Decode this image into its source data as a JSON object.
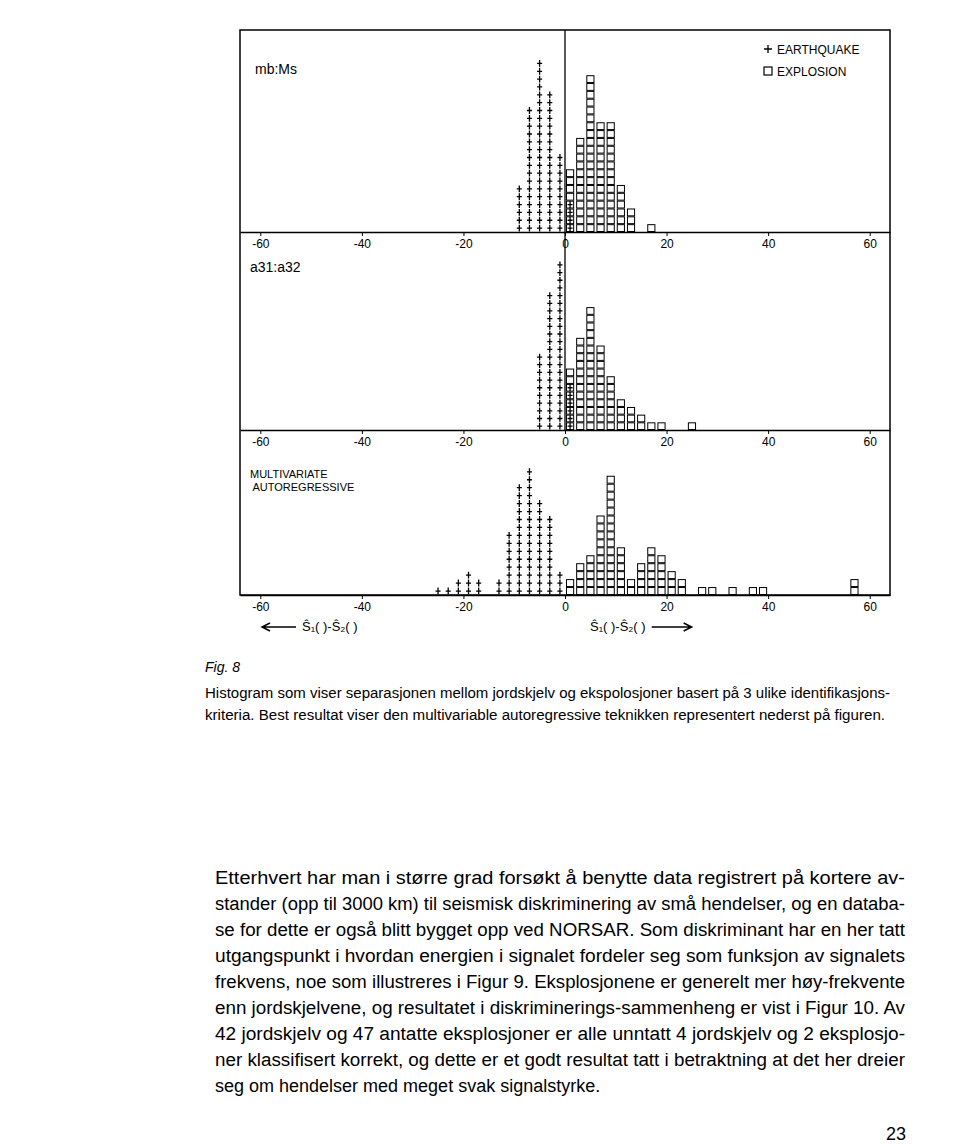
{
  "chart_data": [
    {
      "type": "histogram",
      "title": "mb:Ms",
      "bins": [
        -30,
        -28,
        -26,
        -24,
        -22,
        -20,
        -18,
        -16,
        -14,
        -12,
        -10,
        -8,
        -6,
        -4,
        -2,
        0,
        2,
        4,
        6,
        8,
        10,
        12,
        14,
        16,
        18,
        20,
        22,
        24,
        26,
        28,
        30,
        32,
        34,
        36,
        38,
        40,
        42,
        44,
        46,
        48,
        50,
        52,
        54,
        56,
        58,
        60
      ],
      "series": [
        {
          "name": "EARTHQUAKE",
          "marker": "plus",
          "color": "#000000",
          "values": [
            0,
            0,
            0,
            0,
            0,
            0,
            0,
            0,
            0,
            0,
            6,
            16,
            22,
            18,
            10,
            4,
            0,
            0,
            0,
            0,
            0,
            0,
            0,
            0,
            0,
            0,
            0,
            0,
            0,
            0,
            0,
            0,
            0,
            0,
            0,
            0,
            0,
            0,
            0,
            0,
            0,
            0,
            0,
            0,
            0
          ]
        },
        {
          "name": "EXPLOSION",
          "marker": "square",
          "color": "#000000",
          "values": [
            0,
            0,
            0,
            0,
            0,
            0,
            0,
            0,
            0,
            0,
            0,
            0,
            0,
            0,
            0,
            8,
            12,
            20,
            14,
            14,
            6,
            3,
            0,
            1,
            0,
            0,
            0,
            0,
            0,
            0,
            0,
            0,
            0,
            0,
            0,
            0,
            0,
            0,
            0,
            0,
            0,
            0,
            0,
            0,
            0
          ]
        }
      ],
      "xlim": [
        -64,
        64
      ],
      "xticks": [
        -60,
        -40,
        -20,
        0,
        20,
        40,
        60
      ],
      "ylim": [
        0,
        25
      ],
      "tick_labels": "x",
      "legend": "top-right"
    },
    {
      "type": "histogram",
      "title": "a31:a32",
      "bins": [
        -30,
        -28,
        -26,
        -24,
        -22,
        -20,
        -18,
        -16,
        -14,
        -12,
        -10,
        -8,
        -6,
        -4,
        -2,
        0,
        2,
        4,
        6,
        8,
        10,
        12,
        14,
        16,
        18,
        20,
        22,
        24,
        26,
        28,
        30,
        32,
        34,
        36,
        38,
        40,
        42,
        44,
        46,
        48,
        50,
        52,
        54,
        56,
        58,
        60
      ],
      "series": [
        {
          "marker": "plus",
          "color": "#000000",
          "values": [
            0,
            0,
            0,
            0,
            0,
            0,
            0,
            0,
            0,
            0,
            0,
            0,
            10,
            18,
            22,
            6,
            0,
            0,
            0,
            0,
            0,
            0,
            0,
            0,
            0,
            0,
            0,
            0,
            0,
            0,
            0,
            0,
            0,
            0,
            0,
            0,
            0,
            0,
            0,
            0,
            0,
            0,
            0,
            0,
            0
          ]
        },
        {
          "marker": "square",
          "color": "#000000",
          "values": [
            0,
            0,
            0,
            0,
            0,
            0,
            0,
            0,
            0,
            0,
            0,
            0,
            0,
            0,
            0,
            8,
            12,
            16,
            11,
            7,
            4,
            3,
            2,
            1,
            1,
            0,
            0,
            1,
            0,
            0,
            0,
            0,
            0,
            0,
            0,
            0,
            0,
            0,
            0,
            0,
            0,
            0,
            0,
            0,
            0
          ]
        }
      ],
      "xlim": [
        -64,
        64
      ],
      "xticks": [
        -60,
        -40,
        -20,
        0,
        20,
        40,
        60
      ],
      "ylim": [
        0,
        25
      ],
      "tick_labels": "x"
    },
    {
      "type": "histogram",
      "title": "MULTIVARIATE AUTOREGRESSIVE",
      "bins": [
        -30,
        -28,
        -26,
        -24,
        -22,
        -20,
        -18,
        -16,
        -14,
        -12,
        -10,
        -8,
        -6,
        -4,
        -2,
        0,
        2,
        4,
        6,
        8,
        10,
        12,
        14,
        16,
        18,
        20,
        22,
        24,
        26,
        28,
        30,
        32,
        34,
        36,
        38,
        40,
        42,
        44,
        46,
        48,
        50,
        52,
        54,
        56,
        58,
        60
      ],
      "series": [
        {
          "marker": "plus",
          "color": "#000000",
          "values": [
            0,
            0,
            1,
            1,
            2,
            3,
            2,
            0,
            2,
            8,
            14,
            16,
            12,
            10,
            3,
            0,
            0,
            0,
            0,
            0,
            0,
            0,
            0,
            0,
            0,
            0,
            0,
            0,
            0,
            0,
            0,
            0,
            0,
            0,
            0,
            0,
            0,
            0,
            0,
            0,
            0,
            0,
            0,
            0,
            0
          ]
        },
        {
          "marker": "square",
          "color": "#000000",
          "values": [
            0,
            0,
            0,
            0,
            0,
            0,
            0,
            0,
            0,
            0,
            0,
            0,
            0,
            0,
            0,
            2,
            4,
            5,
            10,
            15,
            6,
            2,
            4,
            6,
            5,
            3,
            2,
            0,
            1,
            1,
            0,
            1,
            0,
            1,
            1,
            0,
            0,
            0,
            0,
            0,
            0,
            0,
            0,
            2,
            0
          ]
        }
      ],
      "xlim": [
        -64,
        64
      ],
      "xticks": [
        -60,
        -40,
        -20,
        0,
        20,
        40,
        60
      ],
      "ylim": [
        0,
        20
      ],
      "tick_labels": "x",
      "annotations": [
        "Ŝ₁( )-Ŝ₂( )",
        "Ŝ₁( )-Ŝ₂( )"
      ]
    }
  ],
  "figure": {
    "label": "Fig. 8",
    "caption": [
      "Histogram som viser separasjonen mellom jordskjelv og ekspolosjoner basert på 3 ulike identifikasjons-",
      "kriteria. Best resultat viser den multivariable autoregressive teknikken representert nederst på figuren."
    ]
  },
  "body": [
    "Etterhvert har man i større grad forsøkt å benytte data registrert på kortere av-",
    "stander (opp til 3000 km) til seismisk diskriminering av små hendelser, og en databa-",
    "se for dette er også blitt bygget opp ved NORSAR. Som diskriminant har en her tatt",
    "utgangspunkt i hvordan energien i signalet fordeler seg som funksjon av signalets",
    "frekvens, noe som illustreres i Figur 9. Eksplosjonene er generelt mer høy-frekvente",
    "enn jordskjelvene, og resultatet i diskriminerings-sammenheng er vist i Figur 10. Av",
    "42 jordskjelv og 47 antatte eksplosjoner er alle unntatt 4 jordskjelv og 2 eksplosjo-",
    "ner klassifisert korrekt, og dette er et godt resultat tatt i betraktning at det her dreier",
    "seg om hendelser med meget svak signalstyrke."
  ],
  "page_number": 23
}
